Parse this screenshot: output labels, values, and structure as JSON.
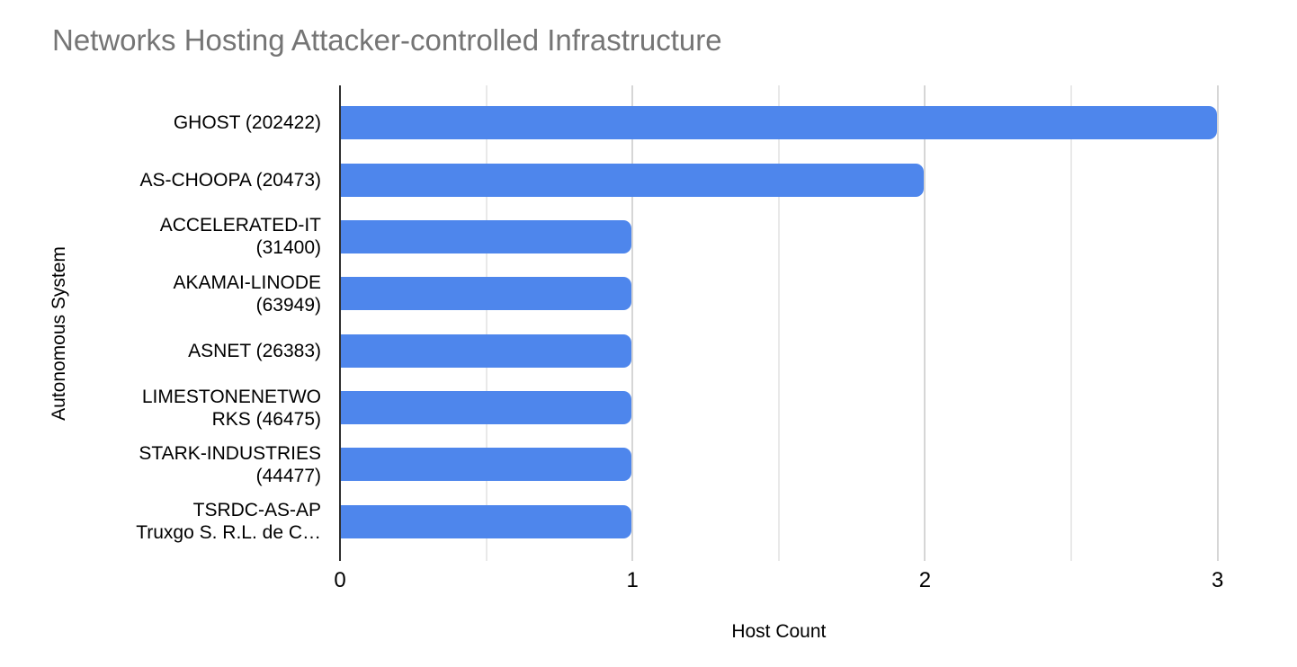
{
  "chart_data": {
    "type": "bar",
    "orientation": "horizontal",
    "title": "Networks Hosting Attacker-controlled Infrastructure",
    "xlabel": "Host Count",
    "ylabel": "Autonomous System",
    "categories": [
      "GHOST (202422)",
      "AS-CHOOPA (20473)",
      "ACCELERATED-IT (31400)",
      "AKAMAI-LINODE (63949)",
      "ASNET (26383)",
      "LIMESTONENETWORKS (46475)",
      "STARK-INDUSTRIES (44477)",
      "TSRDC-AS-AP Truxgo S. R.L. de C…"
    ],
    "category_display_lines": [
      [
        "GHOST (202422)"
      ],
      [
        "AS-CHOOPA (20473)"
      ],
      [
        "ACCELERATED-IT",
        "(31400)"
      ],
      [
        "AKAMAI-LINODE",
        "(63949)"
      ],
      [
        "ASNET (26383)"
      ],
      [
        "LIMESTONENETWO",
        "RKS (46475)"
      ],
      [
        "STARK-INDUSTRIES",
        "(44477)"
      ],
      [
        "TSRDC-AS-AP",
        "Truxgo S. R.L. de C…"
      ]
    ],
    "values": [
      3,
      2,
      1,
      1,
      1,
      1,
      1,
      1
    ],
    "xticks": [
      0,
      1,
      2,
      3
    ],
    "xlim": [
      0,
      3.21
    ],
    "gridline_step": 0.5,
    "grid": true,
    "legend": "none",
    "bar_color": "#4e86ec",
    "title_color": "#757575",
    "axis_line_color": "#2f2f2f",
    "major_gridline_color": "#d6d6d6",
    "minor_gridline_color": "#e9e9e9"
  }
}
